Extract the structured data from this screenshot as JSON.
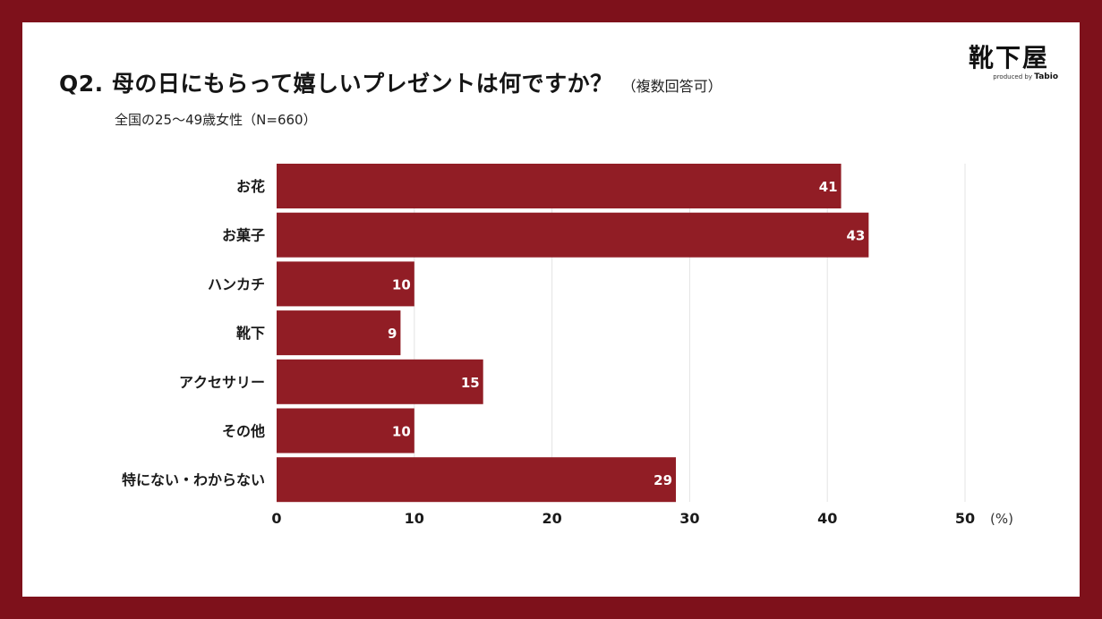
{
  "header": {
    "title": "Q2. 母の日にもらって嬉しいプレゼントは何ですか？",
    "title_note": "（複数回答可）",
    "subtitle": "全国の25～49歳女性（N=660）"
  },
  "logo": {
    "name": "靴下屋",
    "produced_by": "produced by",
    "brand": "Tabio"
  },
  "colors": {
    "frame": "#7e111b",
    "bar": "#911d25",
    "grid": "#e3e3e3",
    "bar_label": "#ffffff"
  },
  "chart_data": {
    "type": "bar",
    "orientation": "horizontal",
    "title": "Q2. 母の日にもらって嬉しいプレゼントは何ですか？",
    "categories": [
      "お花",
      "お菓子",
      "ハンカチ",
      "靴下",
      "アクセサリー",
      "その他",
      "特にない・わからない"
    ],
    "values": [
      41,
      43,
      10,
      9,
      15,
      10,
      29
    ],
    "xlim": [
      0,
      50
    ],
    "xticks": [
      "0",
      "10",
      "20",
      "30",
      "40",
      "50"
    ],
    "xunit": "(%)",
    "grid": true
  }
}
